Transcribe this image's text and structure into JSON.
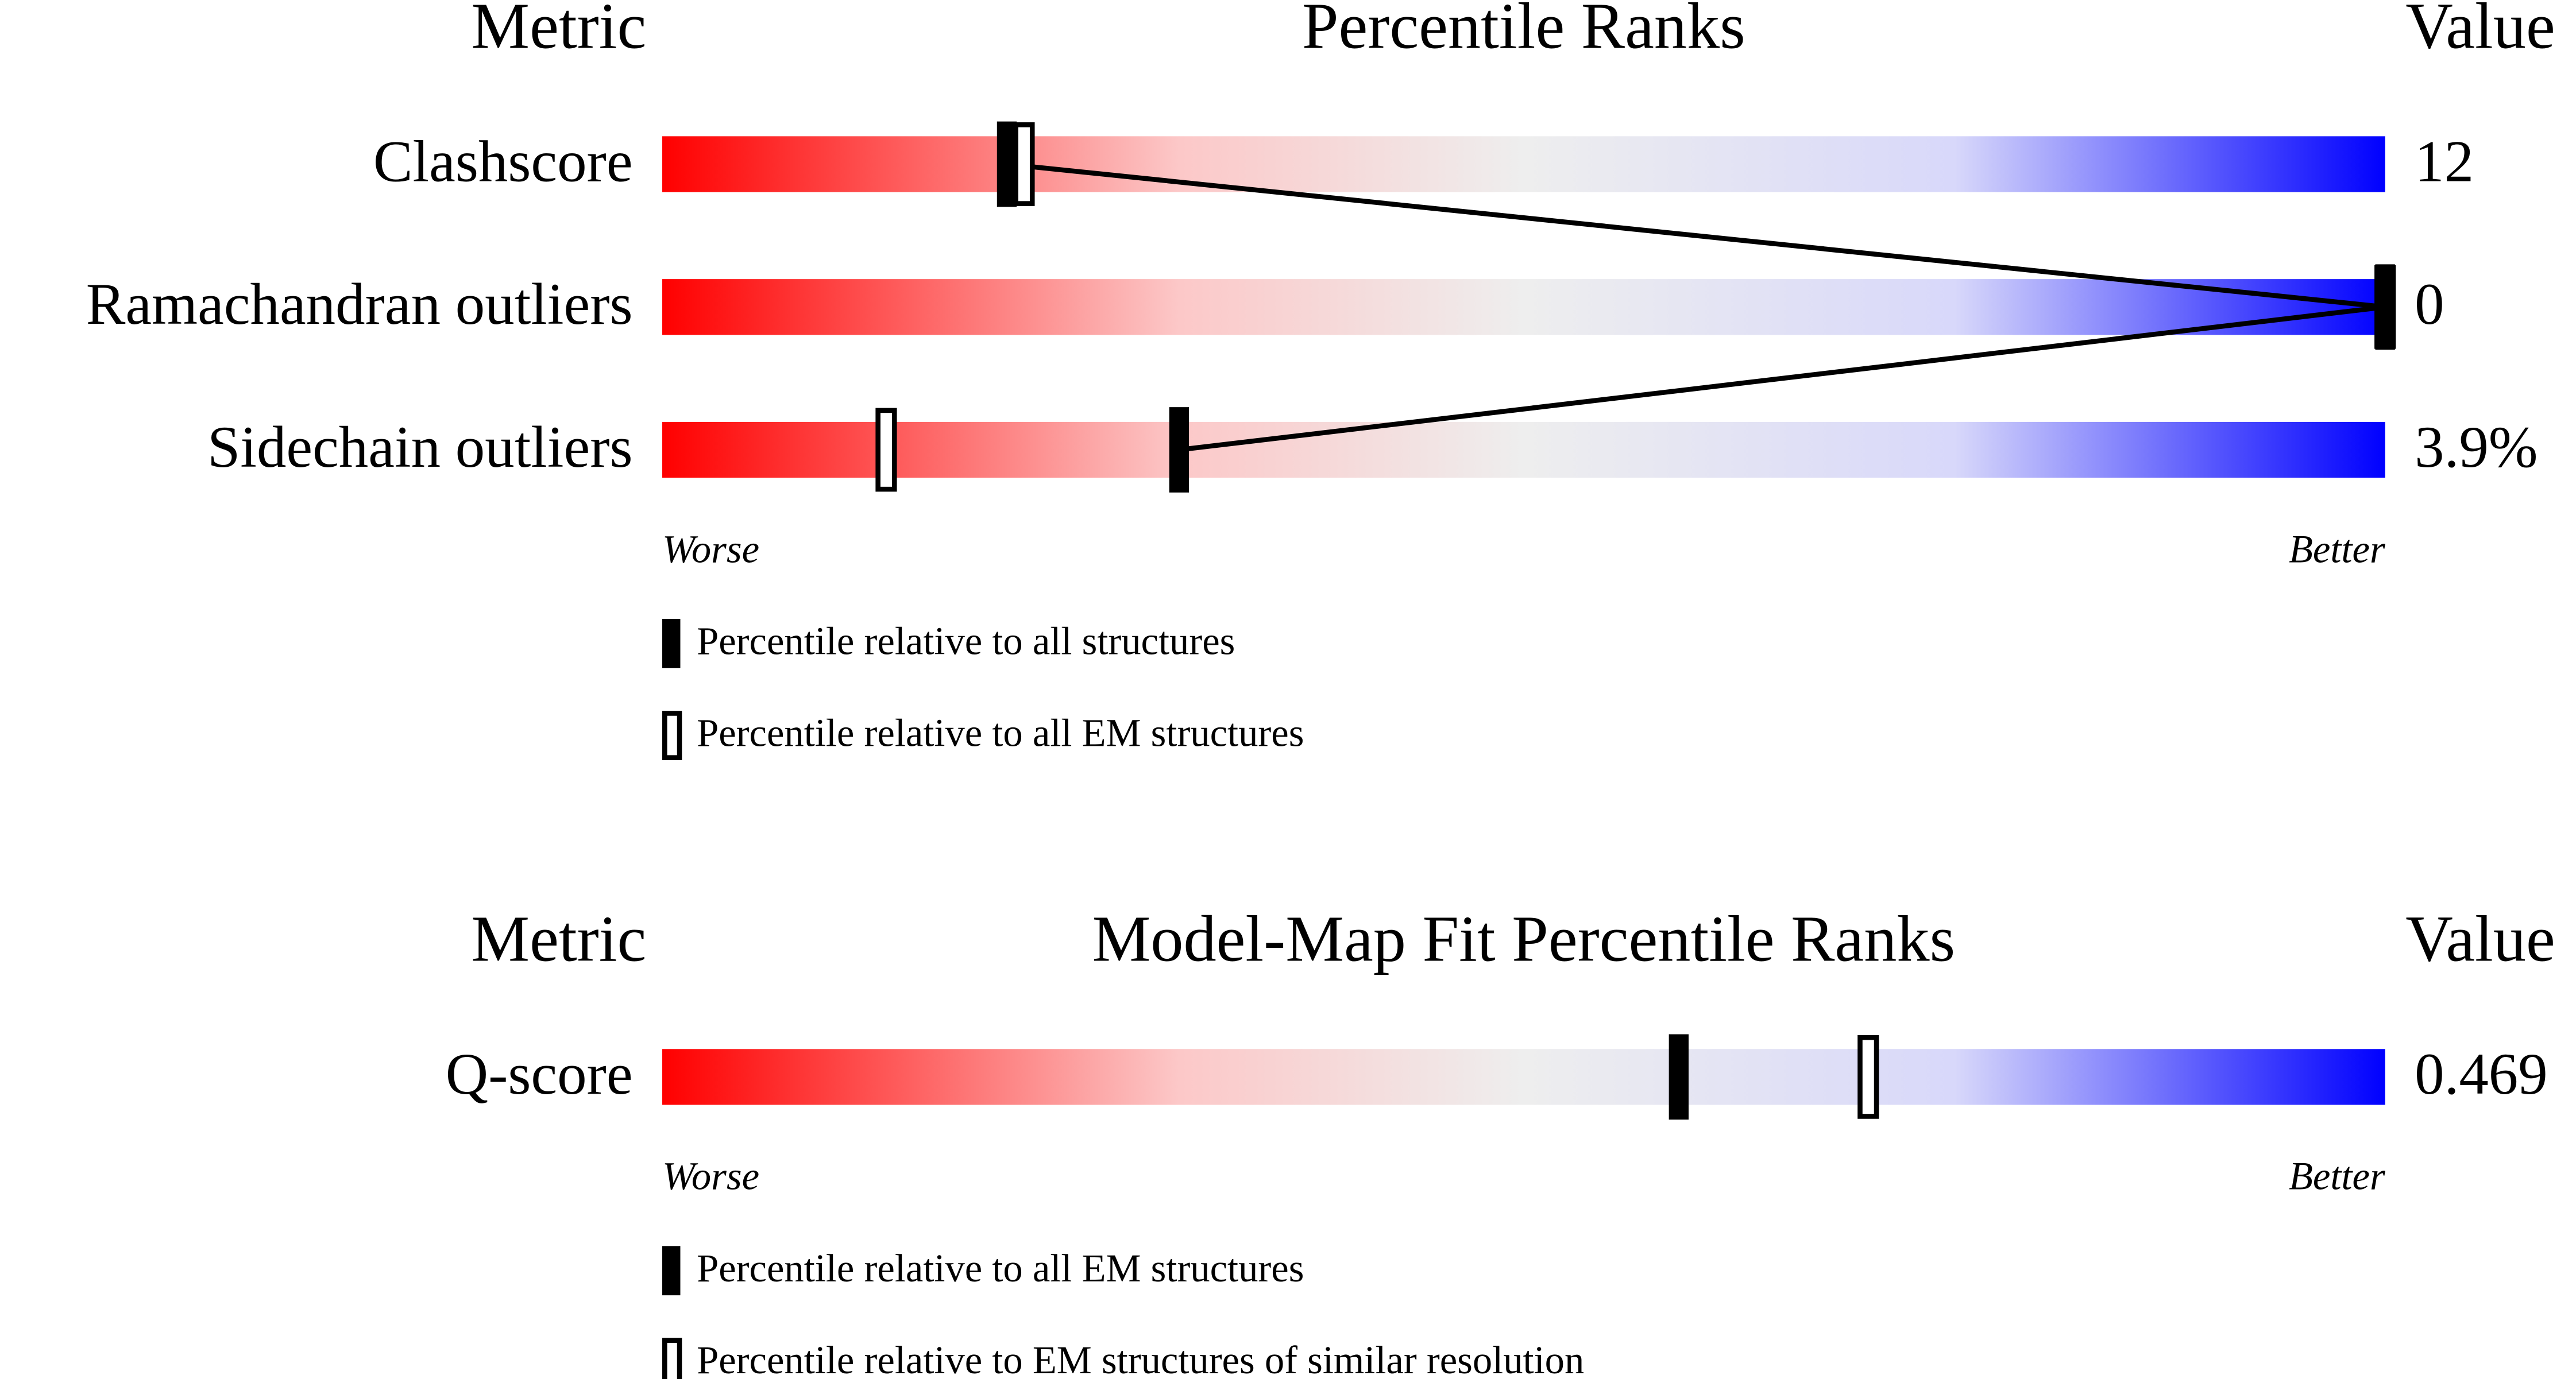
{
  "chart_data": [
    {
      "type": "percentile",
      "metric_header": "Metric",
      "title": "Percentile Ranks",
      "value_header": "Value",
      "worse": "Worse",
      "better": "Better",
      "xlim": [
        0,
        100
      ],
      "connect": true,
      "categories": [
        "Clashscore",
        "Ramachandran outliers",
        "Sidechain outliers"
      ],
      "metric_values": [
        "12",
        "0",
        "3.9%"
      ],
      "series": [
        {
          "name": "Percentile relative to all structures",
          "style": "filled",
          "values": [
            20,
            100,
            30
          ]
        },
        {
          "name": "Percentile relative to all EM structures",
          "style": "hollow",
          "values": [
            21,
            100,
            13
          ]
        }
      ]
    },
    {
      "type": "percentile",
      "metric_header": "Metric",
      "title": "Model-Map Fit Percentile Ranks",
      "value_header": "Value",
      "worse": "Worse",
      "better": "Better",
      "xlim": [
        0,
        100
      ],
      "connect": false,
      "categories": [
        "Q-score"
      ],
      "metric_values": [
        "0.469"
      ],
      "series": [
        {
          "name": "Percentile relative to all EM structures",
          "style": "filled",
          "values": [
            59
          ]
        },
        {
          "name": "Percentile relative to EM structures of similar resolution",
          "style": "hollow",
          "values": [
            70
          ]
        }
      ]
    }
  ]
}
